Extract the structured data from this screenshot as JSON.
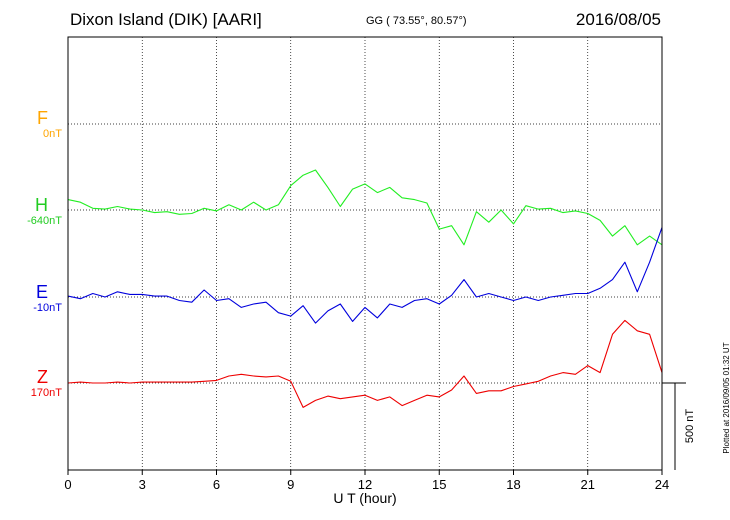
{
  "header": {
    "station": "Dixon Island (DIK)  [AARI]",
    "coords": "GG ( 73.55°,  80.57°)",
    "date": "2016/08/05"
  },
  "plotted_note": "Plotted at 2016/09/05 01:32 UT",
  "chart_data": {
    "type": "line",
    "xlabel": "U T (hour)",
    "xlim": [
      0,
      24
    ],
    "xticks": [
      0,
      3,
      6,
      9,
      12,
      15,
      18,
      21,
      24
    ],
    "scale_bar": "500 nT",
    "grid": true,
    "series": [
      {
        "name": "F",
        "offset": "0nT",
        "color": "#ffa500",
        "x": [],
        "y": []
      },
      {
        "name": "H",
        "offset": "-640nT",
        "color": "#22ee22",
        "x": [
          0,
          0.5,
          1,
          1.5,
          2,
          2.5,
          3,
          3.5,
          4,
          4.5,
          5,
          5.5,
          6,
          6.5,
          7,
          7.5,
          8,
          8.5,
          9,
          9.5,
          10,
          10.5,
          11,
          11.5,
          12,
          12.5,
          13,
          13.5,
          14,
          14.5,
          15,
          15.5,
          16,
          16.5,
          17,
          17.5,
          18,
          18.5,
          19,
          19.5,
          20,
          20.5,
          21,
          21.5,
          22,
          22.5,
          23,
          23.5,
          24
        ],
        "y": [
          60,
          45,
          10,
          5,
          20,
          5,
          0,
          -15,
          -10,
          -25,
          -20,
          10,
          -5,
          30,
          0,
          45,
          0,
          30,
          140,
          200,
          230,
          130,
          20,
          120,
          150,
          100,
          130,
          70,
          60,
          40,
          -110,
          -90,
          -200,
          -10,
          -70,
          0,
          -80,
          25,
          5,
          10,
          -15,
          -5,
          -20,
          -60,
          -150,
          -90,
          -200,
          -150,
          -200
        ]
      },
      {
        "name": "E",
        "offset": "-10nT",
        "color": "#0000dd",
        "x": [
          0,
          0.5,
          1,
          1.5,
          2,
          2.5,
          3,
          3.5,
          4,
          4.5,
          5,
          5.5,
          6,
          6.5,
          7,
          7.5,
          8,
          8.5,
          9,
          9.5,
          10,
          10.5,
          11,
          11.5,
          12,
          12.5,
          13,
          13.5,
          14,
          14.5,
          15,
          15.5,
          16,
          16.5,
          17,
          17.5,
          18,
          18.5,
          19,
          19.5,
          20,
          20.5,
          21,
          21.5,
          22,
          22.5,
          23,
          23.5,
          24
        ],
        "y": [
          5,
          -10,
          20,
          0,
          30,
          15,
          15,
          5,
          5,
          -20,
          -30,
          40,
          -20,
          -10,
          -60,
          -40,
          -30,
          -90,
          -110,
          -50,
          -150,
          -80,
          -40,
          -140,
          -60,
          -120,
          -40,
          -60,
          -20,
          -10,
          -40,
          10,
          100,
          0,
          20,
          0,
          -20,
          0,
          -20,
          0,
          10,
          20,
          20,
          50,
          100,
          200,
          30,
          200,
          400
        ]
      },
      {
        "name": "Z",
        "offset": "170nT",
        "color": "#ee0000",
        "x": [
          0,
          0.5,
          1,
          1.5,
          2,
          2.5,
          3,
          3.5,
          4,
          4.5,
          5,
          5.5,
          6,
          6.5,
          7,
          7.5,
          8,
          8.5,
          9,
          9.5,
          10,
          10.5,
          11,
          11.5,
          12,
          12.5,
          13,
          13.5,
          14,
          14.5,
          15,
          15.5,
          16,
          16.5,
          17,
          17.5,
          18,
          18.5,
          19,
          19.5,
          20,
          20.5,
          21,
          21.5,
          22,
          22.5,
          23,
          23.5,
          24
        ],
        "y": [
          0,
          5,
          0,
          0,
          5,
          0,
          5,
          5,
          5,
          5,
          5,
          10,
          15,
          40,
          50,
          40,
          35,
          40,
          10,
          -140,
          -100,
          -75,
          -90,
          -80,
          -70,
          -100,
          -80,
          -130,
          -100,
          -70,
          -80,
          -40,
          40,
          -60,
          -45,
          -45,
          -20,
          -5,
          10,
          40,
          60,
          50,
          100,
          60,
          280,
          360,
          300,
          280,
          60
        ]
      }
    ]
  }
}
